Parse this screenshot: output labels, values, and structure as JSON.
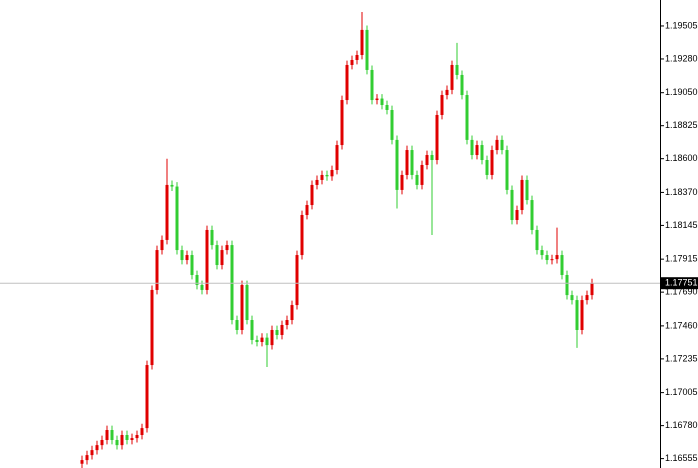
{
  "chart_data": {
    "type": "candlestick",
    "up_color": "#e00000",
    "down_color": "#32cd32",
    "open": [
      1.1652,
      1.16545,
      1.16579,
      1.16613,
      1.16647,
      1.16682,
      1.1675,
      1.16682,
      1.16647,
      1.16716,
      1.16682,
      1.16695,
      1.16716,
      1.16763,
      1.17193,
      1.17705,
      1.17977,
      1.18046,
      1.18421,
      1.1841,
      1.17977,
      1.17909,
      1.17943,
      1.17807,
      1.17739,
      1.17705,
      1.18114,
      1.18011,
      1.17875,
      1.17977,
      1.18011,
      1.175,
      1.17432,
      1.17739,
      1.175,
      1.17364,
      1.1735,
      1.1738,
      1.17329,
      1.17432,
      1.17398,
      1.17466,
      1.175,
      1.17602,
      1.17943,
      1.18216,
      1.18284,
      1.18421,
      1.18455,
      1.18489,
      1.1848,
      1.18523,
      1.18693,
      1.19,
      1.19239,
      1.19273,
      1.19307,
      1.19478,
      1.19205,
      1.19,
      1.1901,
      1.18966,
      1.18932,
      1.18728,
      1.18387,
      1.18489,
      1.18659,
      1.18489,
      1.18421,
      1.18557,
      1.18625,
      1.18591,
      1.18898,
      1.19034,
      1.19069,
      1.19239,
      1.19171,
      1.19034,
      1.18728,
      1.18625,
      1.18693,
      1.18591,
      1.18489,
      1.18659,
      1.18728,
      1.18659,
      1.18387,
      1.18182,
      1.1825,
      1.18455,
      1.18318,
      1.18114,
      1.17977,
      1.17943,
      1.17909,
      1.17915,
      1.17943,
      1.17807,
      1.1767,
      1.17636,
      1.17432,
      1.17636,
      1.1767
    ],
    "high": [
      1.16575,
      1.16609,
      1.16643,
      1.16677,
      1.16712,
      1.1678,
      1.1678,
      1.16712,
      1.16746,
      1.16746,
      1.16725,
      1.16746,
      1.16793,
      1.17223,
      1.17735,
      1.18007,
      1.18076,
      1.186,
      1.18451,
      1.1844,
      1.18007,
      1.17973,
      1.17973,
      1.17837,
      1.17769,
      1.18144,
      1.18144,
      1.18041,
      1.18007,
      1.18041,
      1.18041,
      1.1753,
      1.17769,
      1.17769,
      1.1753,
      1.17394,
      1.1741,
      1.1741,
      1.17462,
      1.17462,
      1.17496,
      1.1753,
      1.17632,
      1.17973,
      1.18246,
      1.18314,
      1.18451,
      1.18485,
      1.18519,
      1.18519,
      1.18553,
      1.18723,
      1.1903,
      1.19269,
      1.19303,
      1.19337,
      1.196,
      1.19508,
      1.19235,
      1.1904,
      1.1904,
      1.18996,
      1.18962,
      1.18758,
      1.18519,
      1.18689,
      1.18689,
      1.18519,
      1.18587,
      1.18655,
      1.18655,
      1.18928,
      1.19064,
      1.19099,
      1.19269,
      1.1939,
      1.19201,
      1.19064,
      1.18758,
      1.18723,
      1.18723,
      1.18621,
      1.18689,
      1.18758,
      1.18758,
      1.18689,
      1.18417,
      1.1828,
      1.18485,
      1.18485,
      1.18348,
      1.18144,
      1.18007,
      1.17973,
      1.17945,
      1.1813,
      1.17973,
      1.17837,
      1.177,
      1.17666,
      1.17666,
      1.177,
      1.17781
    ],
    "low": [
      1.1649,
      1.16515,
      1.16549,
      1.16583,
      1.16617,
      1.16652,
      1.16652,
      1.16617,
      1.16617,
      1.16652,
      1.16652,
      1.16665,
      1.16686,
      1.16733,
      1.17163,
      1.17675,
      1.17947,
      1.18016,
      1.1838,
      1.17947,
      1.17879,
      1.17879,
      1.17777,
      1.17709,
      1.17675,
      1.17675,
      1.17981,
      1.17845,
      1.17845,
      1.17947,
      1.1747,
      1.17402,
      1.17402,
      1.1747,
      1.17334,
      1.1732,
      1.1732,
      1.1718,
      1.17299,
      1.17368,
      1.17368,
      1.17436,
      1.1747,
      1.17572,
      1.17913,
      1.18186,
      1.18254,
      1.18391,
      1.18425,
      1.1845,
      1.1845,
      1.18493,
      1.18663,
      1.1897,
      1.19209,
      1.19243,
      1.19277,
      1.19175,
      1.1897,
      1.1897,
      1.18936,
      1.18902,
      1.18698,
      1.1826,
      1.18357,
      1.18459,
      1.18459,
      1.18391,
      1.18391,
      1.18527,
      1.1808,
      1.18561,
      1.18868,
      1.19004,
      1.19039,
      1.19141,
      1.19004,
      1.18698,
      1.18595,
      1.18595,
      1.18561,
      1.18459,
      1.18459,
      1.18629,
      1.18629,
      1.18357,
      1.18152,
      1.18152,
      1.1822,
      1.18288,
      1.18084,
      1.17947,
      1.17913,
      1.17879,
      1.17879,
      1.17885,
      1.17777,
      1.1764,
      1.17606,
      1.1731,
      1.17402,
      1.17606,
      1.1764
    ],
    "close": [
      1.16545,
      1.16579,
      1.16613,
      1.16647,
      1.16682,
      1.1675,
      1.16682,
      1.16647,
      1.16716,
      1.16682,
      1.16695,
      1.16716,
      1.16763,
      1.17193,
      1.17705,
      1.17977,
      1.18046,
      1.18421,
      1.1841,
      1.17977,
      1.17909,
      1.17943,
      1.17807,
      1.17739,
      1.17705,
      1.18114,
      1.18011,
      1.17875,
      1.17977,
      1.18011,
      1.175,
      1.17432,
      1.17739,
      1.175,
      1.17364,
      1.1735,
      1.1738,
      1.17329,
      1.17432,
      1.17398,
      1.17466,
      1.175,
      1.17602,
      1.17943,
      1.18216,
      1.18284,
      1.18421,
      1.18455,
      1.18489,
      1.1848,
      1.18523,
      1.18693,
      1.19,
      1.19239,
      1.19273,
      1.19307,
      1.19478,
      1.19205,
      1.19,
      1.1901,
      1.18966,
      1.18932,
      1.18728,
      1.18387,
      1.18489,
      1.18659,
      1.18489,
      1.18421,
      1.18557,
      1.18625,
      1.18591,
      1.18898,
      1.19034,
      1.19069,
      1.19239,
      1.19171,
      1.19034,
      1.18728,
      1.18625,
      1.18693,
      1.18591,
      1.18489,
      1.18659,
      1.18728,
      1.18659,
      1.18387,
      1.18182,
      1.1825,
      1.18455,
      1.18318,
      1.18114,
      1.17977,
      1.17943,
      1.17909,
      1.17915,
      1.17943,
      1.17807,
      1.1767,
      1.17636,
      1.17432,
      1.17636,
      1.1767,
      1.17751
    ],
    "current_price": 1.17751,
    "ylim": [
      1.16491,
      1.19682
    ],
    "yticks": [
      1.19505,
      {
        "value": 1.1928,
        "label": "1.19280"
      },
      {
        "value": 1.1905,
        "label": "1.19050"
      },
      1.18825,
      {
        "value": 1.186,
        "label": "1.18600"
      },
      {
        "value": 1.1837,
        "label": "1.18370"
      },
      1.18145,
      1.17915,
      {
        "value": 1.1769,
        "label": "1.17690"
      },
      {
        "value": 1.1746,
        "label": "1.17460"
      },
      1.17235,
      1.17005,
      {
        "value": 1.1678,
        "label": "1.16780"
      },
      1.16555
    ]
  }
}
